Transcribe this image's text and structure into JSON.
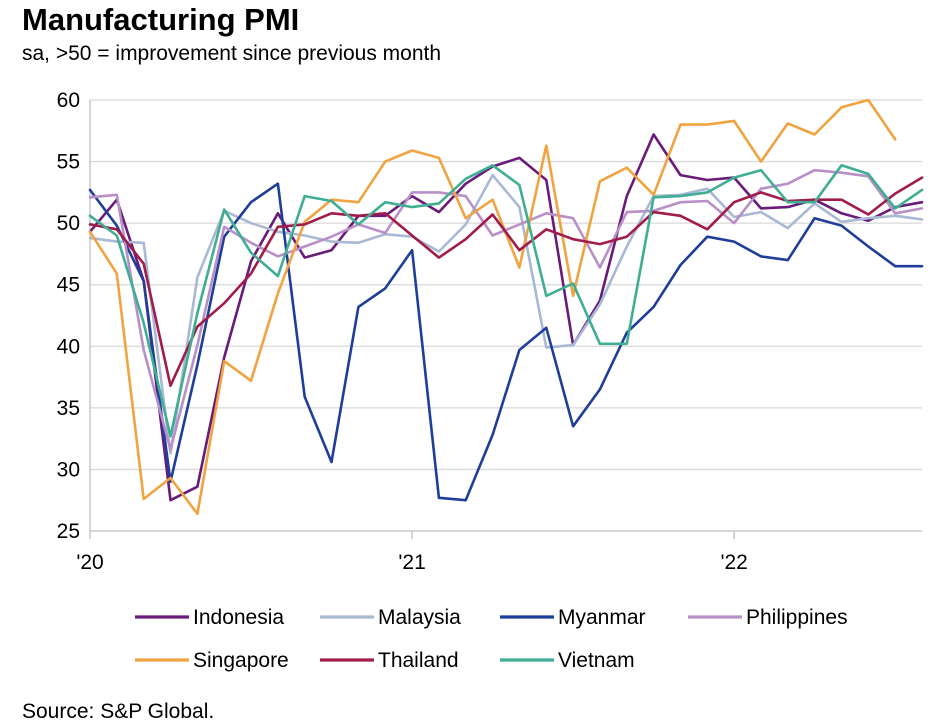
{
  "title": "Manufacturing PMI",
  "subtitle": "sa, >50 = improvement since previous month",
  "source": "Source: S&P Global.",
  "chart_data": {
    "type": "line",
    "ylim": [
      25,
      60
    ],
    "yticks": [
      25,
      30,
      35,
      40,
      45,
      50,
      55,
      60
    ],
    "xlim": [
      0,
      31
    ],
    "xticks": [
      {
        "pos": 0,
        "label": "'20"
      },
      {
        "pos": 12,
        "label": "'21"
      },
      {
        "pos": 24,
        "label": "'22"
      }
    ],
    "grid": "horizontal",
    "legend_position": "bottom",
    "series": [
      {
        "name": "Indonesia",
        "color": "#6a1b7a",
        "values": [
          49.3,
          51.9,
          45.3,
          27.5,
          28.6,
          39.1,
          46.9,
          50.8,
          47.2,
          47.8,
          50.6,
          50.6,
          52.2,
          50.9,
          53.2,
          54.6,
          55.3,
          53.5,
          40.1,
          43.7,
          52.2,
          57.2,
          53.9,
          53.5,
          53.7,
          51.2,
          51.3,
          51.9,
          50.8,
          50.2,
          51.3,
          51.7
        ]
      },
      {
        "name": "Malaysia",
        "color": "#a9b9d4",
        "values": [
          48.8,
          48.5,
          48.4,
          31.3,
          45.6,
          51.0,
          50.0,
          49.3,
          49.0,
          48.5,
          48.4,
          49.1,
          48.9,
          47.7,
          49.9,
          53.9,
          51.3,
          39.9,
          40.1,
          43.4,
          48.1,
          52.2,
          52.3,
          52.8,
          50.5,
          50.9,
          49.6,
          51.6,
          50.1,
          50.4,
          50.6,
          50.3
        ]
      },
      {
        "name": "Myanmar",
        "color": "#1f3e9a",
        "values": [
          52.7,
          49.8,
          45.3,
          29.0,
          38.5,
          48.9,
          51.7,
          53.2,
          35.9,
          30.6,
          43.2,
          44.7,
          47.8,
          27.7,
          27.5,
          32.8,
          39.7,
          41.5,
          33.5,
          36.5,
          41.1,
          43.2,
          46.6,
          48.9,
          48.5,
          47.3,
          47.0,
          50.4,
          49.8,
          48.1,
          46.5,
          46.5
        ]
      },
      {
        "name": "Philippines",
        "color": "#b98fc8",
        "values": [
          52.1,
          52.3,
          39.7,
          31.6,
          40.1,
          49.7,
          48.4,
          47.3,
          48.1,
          48.9,
          49.9,
          49.2,
          52.5,
          52.5,
          52.2,
          49.0,
          49.9,
          50.8,
          50.4,
          46.4,
          50.9,
          51.0,
          51.7,
          51.8,
          50.0,
          52.8,
          53.2,
          54.3,
          54.1,
          53.8,
          50.8,
          51.2
        ]
      },
      {
        "name": "Singapore",
        "color": "#f0a340",
        "values": [
          49.3,
          45.9,
          27.6,
          29.3,
          26.4,
          38.8,
          37.2,
          44.3,
          50.1,
          51.9,
          51.7,
          55.0,
          55.9,
          55.3,
          50.4,
          51.9,
          46.4,
          56.3,
          44.1,
          53.4,
          54.5,
          52.3,
          58.0,
          58.0,
          58.3,
          55.0,
          58.1,
          57.2,
          59.4,
          60.0,
          56.8
        ]
      },
      {
        "name": "Thailand",
        "color": "#a11c4b",
        "values": [
          49.9,
          49.5,
          46.7,
          36.8,
          41.6,
          43.5,
          45.9,
          49.7,
          49.9,
          50.8,
          50.6,
          50.8,
          49.0,
          47.2,
          48.7,
          50.7,
          47.8,
          49.5,
          48.7,
          48.3,
          48.9,
          50.9,
          50.6,
          49.5,
          51.7,
          52.5,
          51.8,
          51.9,
          51.9,
          50.7,
          52.4,
          53.7
        ]
      },
      {
        "name": "Vietnam",
        "color": "#3fae93",
        "values": [
          50.6,
          49.0,
          41.9,
          32.7,
          42.7,
          51.1,
          47.6,
          45.7,
          52.2,
          51.8,
          49.9,
          51.7,
          51.3,
          51.6,
          53.6,
          54.7,
          53.1,
          44.1,
          45.1,
          40.2,
          40.2,
          52.1,
          52.2,
          52.5,
          53.7,
          54.3,
          51.7,
          51.7,
          54.7,
          54.0,
          51.2,
          52.7
        ]
      }
    ]
  }
}
